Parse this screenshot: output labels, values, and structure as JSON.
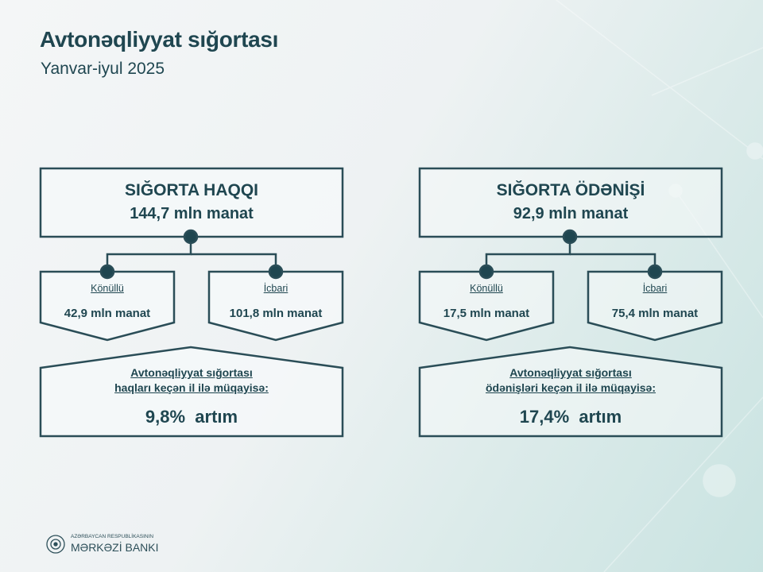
{
  "header": {
    "title": "Avtonəqliyyat sığortası",
    "subtitle": "Yanvar-iyul 2025"
  },
  "colors": {
    "primary": "#1f4650",
    "box_fill": "#f5f8f9"
  },
  "premiums": {
    "title": "SIĞORTA HAQQI",
    "total": "144,7 mln manat",
    "voluntary": {
      "label": "Könüllü",
      "value": "42,9 mln manat"
    },
    "compulsory": {
      "label": "İcbari",
      "value": "101,8 mln manat"
    },
    "comparison_line1": "Avtonəqliyyat sığortası",
    "comparison_line2": "haqları keçən il ilə müqayisə:",
    "change": "9,8%  artım"
  },
  "payments": {
    "title": "SIĞORTA ÖDƏNİŞİ",
    "total": "92,9 mln manat",
    "voluntary": {
      "label": "Könüllü",
      "value": "17,5 mln manat"
    },
    "compulsory": {
      "label": "İcbari",
      "value": "75,4 mln manat"
    },
    "comparison_line1": "Avtonəqliyyat sığortası",
    "comparison_line2": "ödənişləri keçən il ilə müqayisə:",
    "change": "17,4%  artım"
  },
  "footer": {
    "logo_line1": "AZƏRBAYCAN RESPUBLİKASININ",
    "logo_line2": "MƏRKƏZİ BANKI",
    "logo_icon": "emblem-icon"
  }
}
